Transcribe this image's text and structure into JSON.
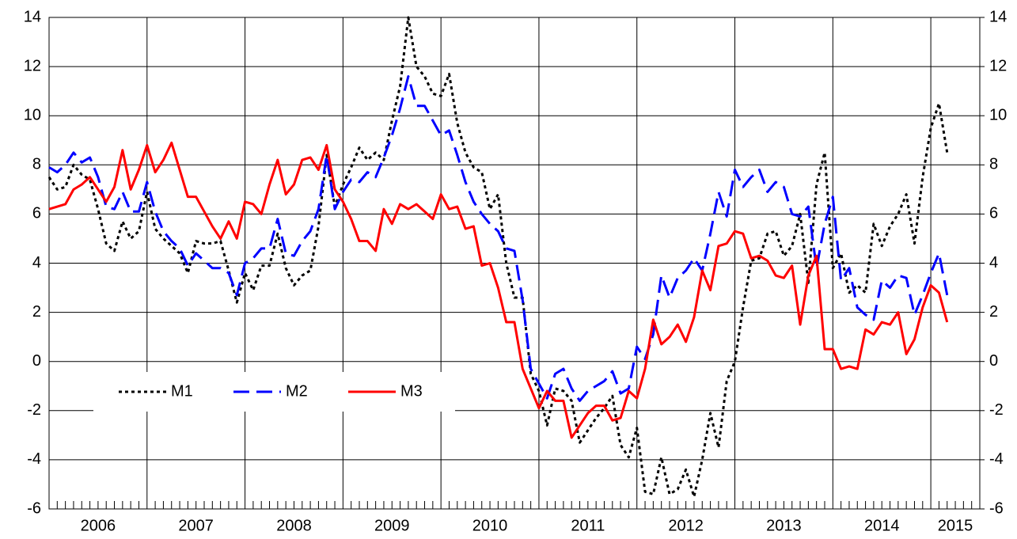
{
  "chart_data": {
    "type": "line",
    "categories": [
      null,
      null,
      null,
      null,
      null,
      null,
      "2006",
      null,
      null,
      null,
      null,
      null,
      null,
      null,
      null,
      null,
      null,
      null,
      "2007",
      null,
      null,
      null,
      null,
      null,
      null,
      null,
      null,
      null,
      null,
      null,
      "2008",
      null,
      null,
      null,
      null,
      null,
      null,
      null,
      null,
      null,
      null,
      null,
      "2009",
      null,
      null,
      null,
      null,
      null,
      null,
      null,
      null,
      null,
      null,
      null,
      "2010",
      null,
      null,
      null,
      null,
      null,
      null,
      null,
      null,
      null,
      null,
      null,
      "2011",
      null,
      null,
      null,
      null,
      null,
      null,
      null,
      null,
      null,
      null,
      null,
      "2012",
      null,
      null,
      null,
      null,
      null,
      null,
      null,
      null,
      null,
      null,
      null,
      "2013",
      null,
      null,
      null,
      null,
      null,
      null,
      null,
      null,
      null,
      null,
      null,
      "2014",
      null,
      null,
      null,
      null,
      null,
      null,
      null,
      null,
      "2015",
      null,
      null,
      null
    ],
    "series": [
      {
        "name": "M1",
        "color": "#000000",
        "dash": "dotted",
        "values": [
          7.5,
          7.0,
          7.1,
          8.0,
          7.6,
          7.4,
          6.2,
          4.8,
          4.5,
          5.7,
          5.0,
          5.3,
          6.9,
          5.4,
          5.0,
          4.7,
          4.4,
          3.6,
          4.9,
          4.8,
          4.8,
          4.9,
          3.7,
          2.4,
          3.6,
          2.9,
          3.9,
          3.9,
          5.2,
          3.8,
          3.1,
          3.5,
          3.7,
          5.5,
          8.4,
          6.3,
          7.2,
          7.9,
          8.7,
          8.2,
          8.5,
          8.2,
          9.8,
          11.2,
          14.0,
          12.0,
          11.6,
          10.9,
          10.8,
          11.7,
          9.7,
          8.5,
          7.9,
          7.7,
          6.2,
          6.8,
          4.0,
          2.6,
          2.6,
          -0.5,
          -1.2,
          -2.6,
          -1.1,
          -1.2,
          -1.6,
          -3.3,
          -2.8,
          -2.3,
          -1.9,
          -1.4,
          -3.4,
          -3.9,
          -2.7,
          -5.3,
          -5.4,
          -3.9,
          -5.4,
          -5.2,
          -4.4,
          -5.5,
          -4.0,
          -2.1,
          -3.5,
          -0.8,
          0.0,
          2.2,
          4.1,
          4.2,
          5.2,
          5.3,
          4.3,
          4.7,
          6.0,
          3.2,
          7.2,
          8.5,
          3.8,
          4.4,
          2.8,
          3.1,
          2.8,
          5.6,
          4.7,
          5.5,
          6.0,
          6.8,
          4.8,
          7.5,
          9.5,
          10.5,
          8.5,
          null,
          null,
          null,
          null
        ]
      },
      {
        "name": "M2",
        "color": "#0000ff",
        "dash": "dashed",
        "values": [
          7.9,
          7.7,
          8.0,
          8.5,
          8.1,
          8.3,
          7.5,
          6.3,
          6.2,
          6.9,
          6.1,
          6.1,
          7.3,
          6.1,
          5.3,
          4.9,
          4.6,
          3.9,
          4.4,
          4.1,
          3.8,
          3.8,
          3.6,
          2.7,
          4.0,
          4.2,
          4.6,
          4.6,
          5.8,
          4.4,
          4.3,
          4.9,
          5.3,
          6.2,
          8.4,
          6.2,
          6.9,
          7.4,
          7.3,
          7.7,
          7.5,
          8.3,
          9.2,
          10.3,
          11.6,
          10.4,
          10.4,
          9.8,
          9.2,
          9.4,
          8.4,
          7.3,
          6.5,
          6.0,
          5.6,
          5.3,
          4.6,
          4.5,
          2.5,
          -0.3,
          -0.9,
          -1.5,
          -0.5,
          -0.3,
          -1.1,
          -1.6,
          -1.2,
          -1.0,
          -0.8,
          -0.4,
          -1.3,
          -1.1,
          0.6,
          0.1,
          1.1,
          3.5,
          2.6,
          3.4,
          3.7,
          4.2,
          3.7,
          5.2,
          6.9,
          5.9,
          7.8,
          7.1,
          7.5,
          7.8,
          6.9,
          7.3,
          7.1,
          6.0,
          5.9,
          6.3,
          3.8,
          5.6,
          6.7,
          3.3,
          3.8,
          2.2,
          1.9,
          1.7,
          3.3,
          3.0,
          3.5,
          3.4,
          1.9,
          2.7,
          3.6,
          4.4,
          2.7,
          null,
          null,
          null,
          null
        ]
      },
      {
        "name": "M3",
        "color": "#ff0000",
        "dash": "solid",
        "values": [
          6.2,
          6.3,
          6.4,
          7.0,
          7.2,
          7.5,
          7.0,
          6.5,
          7.1,
          8.6,
          7.0,
          7.8,
          8.8,
          7.7,
          8.2,
          8.9,
          7.8,
          6.7,
          6.7,
          6.1,
          5.5,
          5.0,
          5.7,
          5.0,
          6.5,
          6.4,
          6.0,
          7.2,
          8.2,
          6.8,
          7.2,
          8.2,
          8.3,
          7.8,
          8.8,
          7.0,
          6.5,
          5.8,
          4.9,
          4.9,
          4.5,
          6.2,
          5.6,
          6.4,
          6.2,
          6.4,
          6.1,
          5.8,
          6.8,
          6.2,
          6.3,
          5.4,
          5.5,
          3.9,
          4.0,
          3.0,
          1.6,
          1.6,
          -0.3,
          -1.1,
          -1.9,
          -1.2,
          -1.6,
          -1.6,
          -3.1,
          -2.6,
          -2.1,
          -1.8,
          -1.8,
          -2.4,
          -2.3,
          -1.2,
          -1.5,
          -0.3,
          1.7,
          0.7,
          1.0,
          1.5,
          0.8,
          1.8,
          3.7,
          2.9,
          4.7,
          4.8,
          5.3,
          5.2,
          4.2,
          4.3,
          4.1,
          3.5,
          3.4,
          3.9,
          1.5,
          3.5,
          4.3,
          0.5,
          0.5,
          -0.3,
          -0.2,
          -0.3,
          1.3,
          1.1,
          1.6,
          1.5,
          2.0,
          0.3,
          0.9,
          2.2,
          3.1,
          2.8,
          1.6,
          null,
          null,
          null,
          null
        ]
      }
    ],
    "ylim": [
      -6,
      14
    ],
    "yticks": [
      -6,
      -4,
      -2,
      0,
      2,
      4,
      6,
      8,
      10,
      12,
      14
    ],
    "y2lim": [
      -6,
      14
    ],
    "y2ticks": [
      -6,
      -4,
      -2,
      0,
      2,
      4,
      6,
      8,
      10,
      12,
      14
    ],
    "grid": true
  }
}
